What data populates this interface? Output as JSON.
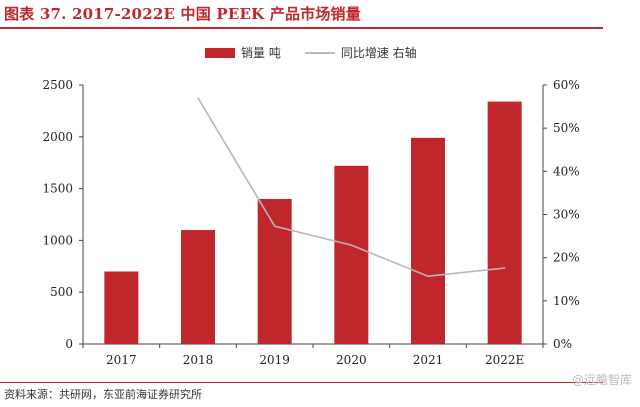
{
  "title": "图表 37. 2017-2022E 中国 PEEK 产品市场销量",
  "source": "资料来源：共研网，东亚前海证券研究所",
  "watermark": "@远瞻智库",
  "colors": {
    "accent": "#c0272d",
    "bar": "#c0272d",
    "line": "#b8b8b8"
  },
  "chart_data": {
    "type": "bar",
    "title": "2017-2022E 中国 PEEK 产品市场销量",
    "categories": [
      "2017",
      "2018",
      "2019",
      "2020",
      "2021",
      "2022E"
    ],
    "series": [
      {
        "name": "销量 吨",
        "type": "bar",
        "axis": "left",
        "values": [
          700,
          1100,
          1400,
          1720,
          1990,
          2340
        ]
      },
      {
        "name": "同比增速 右轴",
        "type": "line",
        "axis": "right",
        "values": [
          null,
          57,
          27.3,
          22.9,
          15.7,
          17.6
        ]
      }
    ],
    "left_axis": {
      "ylim": [
        0,
        2500
      ],
      "ticks": [
        "0",
        "500",
        "1000",
        "1500",
        "2000",
        "2500"
      ]
    },
    "right_axis": {
      "ylim": [
        0,
        60
      ],
      "ticks": [
        "0%",
        "10%",
        "20%",
        "30%",
        "40%",
        "50%",
        "60%"
      ]
    },
    "legend": [
      "销量 吨",
      "同比增速 右轴"
    ],
    "legend_position": "top-center",
    "grid": false
  }
}
